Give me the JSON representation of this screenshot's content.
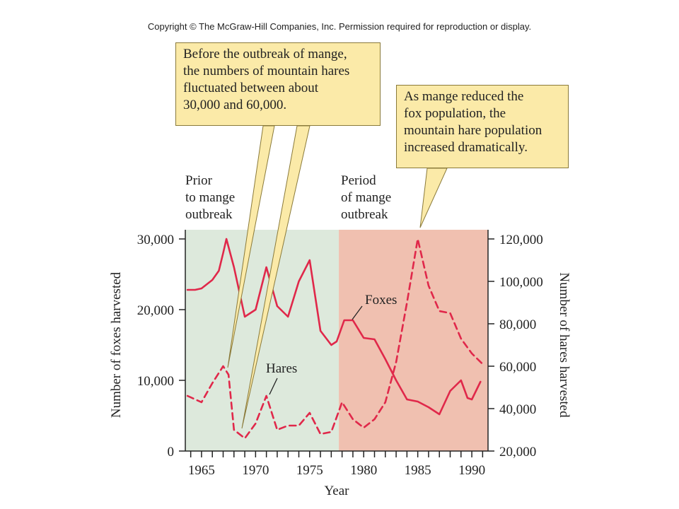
{
  "copyright": "Copyright © The McGraw-Hill Companies, Inc. Permission required for reproduction or display.",
  "callouts": {
    "left": "Before the outbreak of mange,\nthe numbers of mountain hares\nfluctuated between about\n30,000 and 60,000.",
    "right": "As mange reduced the\nfox population, the\nmountain hare population\nincreased dramatically."
  },
  "periods": {
    "prior": "Prior\nto mange\noutbreak",
    "outbreak": "Period\nof mange\noutbreak"
  },
  "colors": {
    "prior_band": "#dde9dc",
    "outbreak_band": "#f0c0b0",
    "line": "#e0284a",
    "callout_fill": "#fbeaa8"
  },
  "chart_data": {
    "type": "line",
    "title": "",
    "xlabel": "Year",
    "ylabel": "Number of foxes harvested",
    "y2label": "Number of hares harvested",
    "xlim": [
      1963.5,
      1991.5
    ],
    "ylim": [
      0,
      30000
    ],
    "y2lim": [
      20000,
      120000
    ],
    "x_ticks": [
      1965,
      1970,
      1975,
      1980,
      1985,
      1990
    ],
    "x_tick_labels": [
      "1965",
      "1970",
      "1975",
      "1980",
      "1985",
      "1990"
    ],
    "y_ticks": [
      0,
      10000,
      20000,
      30000
    ],
    "y_tick_labels": [
      "0",
      "10,000",
      "20,000",
      "30,000"
    ],
    "y2_ticks": [
      20000,
      40000,
      60000,
      80000,
      100000,
      120000
    ],
    "y2_tick_labels": [
      "20,000",
      "40,000",
      "60,000",
      "80,000",
      "100,000",
      "120,000"
    ],
    "periods": [
      {
        "label": "Prior to mange outbreak",
        "start": 1963.5,
        "end": 1977.7
      },
      {
        "label": "Period of mange outbreak",
        "start": 1977.7,
        "end": 1991.5
      }
    ],
    "series": [
      {
        "name": "Foxes",
        "axis": "left",
        "style": "solid",
        "x": [
          1963.7,
          1964.4,
          1965,
          1966,
          1966.6,
          1967,
          1967.3,
          1968,
          1969,
          1970,
          1970.5,
          1971,
          1972,
          1973,
          1974,
          1975,
          1976,
          1977,
          1977.5,
          1978.2,
          1979,
          1980,
          1981,
          1982,
          1983,
          1984,
          1985,
          1986,
          1987,
          1988,
          1989,
          1989.6,
          1990,
          1990.8
        ],
        "y": [
          22800,
          22800,
          23000,
          24200,
          25500,
          28000,
          30000,
          26000,
          19000,
          20000,
          23000,
          26000,
          20500,
          19000,
          24000,
          27000,
          17000,
          15000,
          15500,
          18500,
          18500,
          16000,
          15800,
          13000,
          10000,
          7300,
          7000,
          6200,
          5200,
          8500,
          10000,
          7500,
          7300,
          9800
        ]
      },
      {
        "name": "Hares",
        "axis": "right",
        "style": "dashed",
        "x": [
          1963.7,
          1965,
          1966,
          1967,
          1967.5,
          1968,
          1969,
          1970,
          1971,
          1972,
          1973,
          1974,
          1975,
          1976,
          1977,
          1978,
          1979,
          1980,
          1981,
          1982,
          1983,
          1984,
          1985,
          1986,
          1987,
          1988,
          1989,
          1990,
          1991
        ],
        "y": [
          46000,
          43000,
          52000,
          60000,
          56000,
          30000,
          26000,
          33000,
          46000,
          30000,
          32000,
          32000,
          38000,
          28000,
          29000,
          43000,
          35000,
          31000,
          35000,
          43000,
          62000,
          90000,
          120000,
          98000,
          86000,
          85000,
          73000,
          66000,
          61000
        ]
      }
    ],
    "annotations": [
      {
        "text": "Foxes",
        "series": "Foxes"
      },
      {
        "text": "Hares",
        "series": "Hares"
      }
    ]
  }
}
